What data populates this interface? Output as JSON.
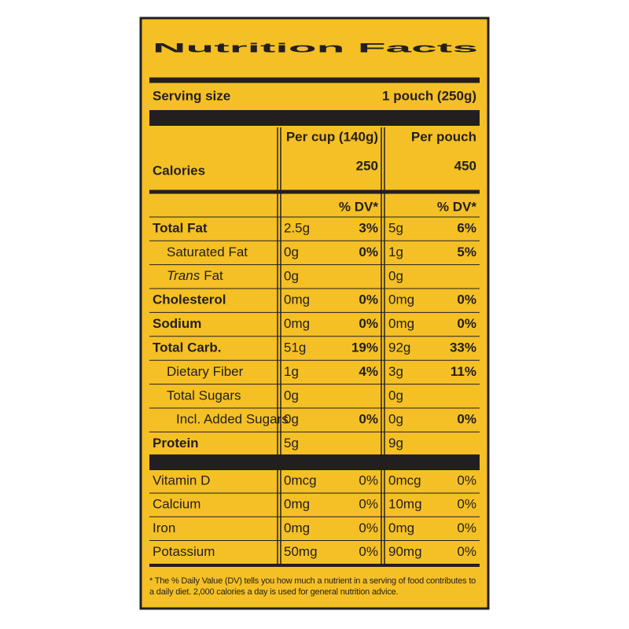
{
  "title": "Nutrition Facts",
  "serving": {
    "label": "Serving size",
    "value": "1 pouch (250g)"
  },
  "calories_label": "Calories",
  "columns": [
    {
      "heading": "Per cup (140g)",
      "calories": "250",
      "dv_heading": "% DV*"
    },
    {
      "heading": "Per pouch",
      "calories": "450",
      "dv_heading": "% DV*"
    }
  ],
  "nutrients": [
    {
      "name": "Total Fat",
      "values": [
        {
          "amount": "2.5g",
          "dv": "3%"
        },
        {
          "amount": "5g",
          "dv": "6%"
        }
      ]
    },
    {
      "name": "Saturated Fat",
      "values": [
        {
          "amount": "0g",
          "dv": "0%"
        },
        {
          "amount": "1g",
          "dv": "5%"
        }
      ]
    },
    {
      "name_italic": "Trans",
      "name": "Fat",
      "values": [
        {
          "amount": "0g"
        },
        {
          "amount": "0g"
        }
      ]
    },
    {
      "name": "Cholesterol",
      "values": [
        {
          "amount": "0mg",
          "dv": "0%"
        },
        {
          "amount": "0mg",
          "dv": "0%"
        }
      ]
    },
    {
      "name": "Sodium",
      "values": [
        {
          "amount": "0mg",
          "dv": "0%"
        },
        {
          "amount": "0mg",
          "dv": "0%"
        }
      ]
    },
    {
      "name": "Total Carb.",
      "values": [
        {
          "amount": "51g",
          "dv": "19%"
        },
        {
          "amount": "92g",
          "dv": "33%"
        }
      ]
    },
    {
      "name": "Dietary Fiber",
      "values": [
        {
          "amount": "1g",
          "dv": "4%"
        },
        {
          "amount": "3g",
          "dv": "11%"
        }
      ]
    },
    {
      "name": "Total Sugars",
      "values": [
        {
          "amount": "0g"
        },
        {
          "amount": "0g"
        }
      ]
    },
    {
      "name": "Incl. Added Sugars",
      "values": [
        {
          "amount": "0g",
          "dv": "0%"
        },
        {
          "amount": "0g",
          "dv": "0%"
        }
      ]
    },
    {
      "name": "Protein",
      "values": [
        {
          "amount": "5g"
        },
        {
          "amount": "9g"
        }
      ]
    }
  ],
  "vitamins": [
    {
      "name": "Vitamin D",
      "values": [
        {
          "amount": "0mcg",
          "dv": "0%"
        },
        {
          "amount": "0mcg",
          "dv": "0%"
        }
      ]
    },
    {
      "name": "Calcium",
      "values": [
        {
          "amount": "0mg",
          "dv": "0%"
        },
        {
          "amount": "10mg",
          "dv": "0%"
        }
      ]
    },
    {
      "name": "Iron",
      "values": [
        {
          "amount": "0mg",
          "dv": "0%"
        },
        {
          "amount": "0mg",
          "dv": "0%"
        }
      ]
    },
    {
      "name": "Potassium",
      "values": [
        {
          "amount": "50mg",
          "dv": "0%"
        },
        {
          "amount": "90mg",
          "dv": "0%"
        }
      ]
    }
  ],
  "footnote": "* The % Daily Value (DV) tells you how much a nutrient in a serving of food contributes to a daily diet. 2,000 calories a day is used for general nutrition advice."
}
